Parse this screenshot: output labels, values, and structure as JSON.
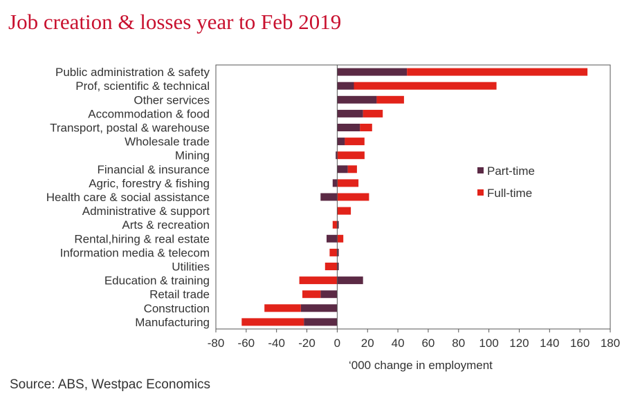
{
  "title": "Job creation & losses year to Feb 2019",
  "source": "Source: ABS, Westpac Economics",
  "chart_data": {
    "type": "bar",
    "orientation": "horizontal",
    "stacked": "diverging",
    "categories": [
      "Public administration & safety",
      "Prof, scientific & technical",
      "Other services",
      "Accommodation & food",
      "Transport, postal & warehouse",
      "Wholesale trade",
      "Mining",
      "Financial & insurance",
      "Agric, forestry & fishing",
      "Health care & social assistance",
      "Administrative & support",
      "Arts & recreation",
      "Rental,hiring & real estate",
      "Information media & telecom",
      "Utilities",
      "Education & training",
      "Retail trade",
      "Construction",
      "Manufacturing"
    ],
    "series": [
      {
        "name": "Part-time",
        "color": "#5b2a45",
        "values": [
          46,
          11,
          26,
          17,
          15,
          5,
          -1,
          7,
          -3,
          -11,
          0,
          1,
          -7,
          1,
          1,
          17,
          -11,
          -24,
          -22
        ]
      },
      {
        "name": "Full-time",
        "color": "#e2231a",
        "values": [
          119,
          94,
          18,
          13,
          8,
          13,
          18,
          6,
          14,
          21,
          9,
          -3,
          4,
          -5,
          -8,
          -25,
          -12,
          -24,
          -41
        ]
      }
    ],
    "xlabel": "‘000 change in employment",
    "ylabel": "",
    "xlim": [
      -80,
      180
    ],
    "xticks": [
      -80,
      -60,
      -40,
      -20,
      0,
      20,
      40,
      60,
      80,
      100,
      120,
      140,
      160,
      180
    ],
    "grid": false,
    "legend_position": "right"
  }
}
